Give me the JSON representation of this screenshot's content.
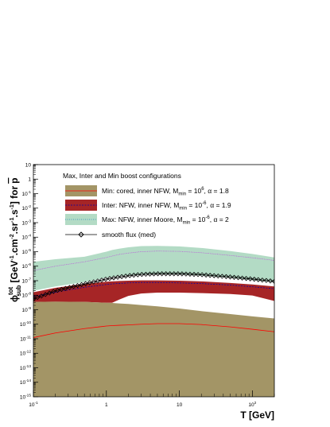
{
  "chart_data": {
    "type": "area",
    "title": "",
    "xlabel": "T [GeV]",
    "ylabel_parts": {
      "phi": "ϕ",
      "sup": "tot",
      "sub": "sub",
      "unit": "[GeV",
      "unit_exp1": "-1",
      "unit_cm": ".cm",
      "unit_exp2": "-2",
      "unit_sr": ".sr",
      "unit_exp3": "-1",
      "unit_s": ".s",
      "unit_exp4": "-1",
      "unit_end": "] for",
      "pbar": "p"
    },
    "x_scale": "log",
    "y_scale": "log",
    "xlim": [
      0.1,
      200
    ],
    "ylim": [
      1e-15,
      10
    ],
    "x_ticks": [
      {
        "value": 0.1,
        "base": "10",
        "exp": "-1"
      },
      {
        "value": 1,
        "base": "1",
        "exp": ""
      },
      {
        "value": 10,
        "base": "10",
        "exp": ""
      },
      {
        "value": 100,
        "base": "10",
        "exp": "2"
      }
    ],
    "y_ticks": [
      {
        "value": 10,
        "base": "10",
        "exp": ""
      },
      {
        "value": 1,
        "base": "1",
        "exp": ""
      },
      {
        "value": 0.1,
        "base": "10",
        "exp": "-1"
      },
      {
        "value": 0.01,
        "base": "10",
        "exp": "-2"
      },
      {
        "value": 0.001,
        "base": "10",
        "exp": "-3"
      },
      {
        "value": 0.0001,
        "base": "10",
        "exp": "-4"
      },
      {
        "value": 1e-05,
        "base": "10",
        "exp": "-5"
      },
      {
        "value": 1e-06,
        "base": "10",
        "exp": "-6"
      },
      {
        "value": 1e-07,
        "base": "10",
        "exp": "-7"
      },
      {
        "value": 1e-08,
        "base": "10",
        "exp": "-8"
      },
      {
        "value": 1e-09,
        "base": "10",
        "exp": "-9"
      },
      {
        "value": 1e-10,
        "base": "10",
        "exp": "-10"
      },
      {
        "value": 1e-11,
        "base": "10",
        "exp": "-11"
      },
      {
        "value": 1e-12,
        "base": "10",
        "exp": "-12"
      },
      {
        "value": 1e-13,
        "base": "10",
        "exp": "-13"
      },
      {
        "value": 1e-14,
        "base": "10",
        "exp": "-14"
      },
      {
        "value": 1e-15,
        "base": "10",
        "exp": "-15"
      }
    ],
    "grid": false,
    "legend_position": "top",
    "legend_title": "Max, Inter and Min boost configurations",
    "legend": [
      {
        "id": "min",
        "text": "Min: cored, inner NFW, M",
        "sub": "min",
        "mid": " = 10",
        "sup": "6",
        "tail": ", α = 1.8"
      },
      {
        "id": "inter",
        "text": "Inter: NFW, inner NFW, M",
        "sub": "min",
        "mid": " = 10",
        "sup": "-6",
        "tail": ", α = 1.9"
      },
      {
        "id": "max",
        "text": "Max: NFW, inner Moore, M",
        "sub": "min",
        "mid": " = 10",
        "sup": "-6",
        "tail": ", α = 2"
      },
      {
        "id": "smooth",
        "text": "smooth flux (med)",
        "sub": "",
        "mid": "",
        "sup": "",
        "tail": ""
      }
    ],
    "colors": {
      "min_fill": "#a39566",
      "inter_fill": "#a62526",
      "max_fill": "#b3dbc5",
      "min_line": "#ff0000",
      "inter_line": "#0000aa",
      "max_line": "#bb44dd",
      "smooth": "#000000"
    },
    "x": [
      0.1,
      0.2,
      0.5,
      1,
      1.2,
      1.5,
      2,
      3,
      5,
      10,
      20,
      50,
      100,
      200
    ],
    "series": [
      {
        "name": "Min: cored, inner NFW, Mmin = 10^6, α = 1.8",
        "role": "min_band",
        "upper": [
          3.5e-09,
          3.6e-09,
          3.5e-09,
          3e-09,
          2.9e-09,
          2.7e-09,
          2.5e-09,
          2.1e-09,
          1.7e-09,
          1.2e-09,
          8e-10,
          5e-10,
          3.5e-10,
          2.5e-10
        ],
        "lower": [
          1e-15,
          1e-15,
          1e-15,
          1e-15,
          1e-15,
          1e-15,
          1e-15,
          1e-15,
          1e-15,
          1e-15,
          1e-15,
          1e-15,
          1e-15,
          1e-15
        ],
        "median": [
          1.2e-11,
          2.5e-11,
          5e-11,
          7.5e-11,
          8e-11,
          8.5e-11,
          9e-11,
          1e-10,
          1.1e-10,
          1.1e-10,
          9.5e-11,
          6.5e-11,
          4.5e-11,
          3e-11
        ]
      },
      {
        "name": "Inter: NFW, inner NFW, Mmin = 10^-6, α = 1.9",
        "role": "inter_band",
        "upper": [
          1.6e-08,
          3.2e-08,
          6e-08,
          8.5e-08,
          9e-08,
          9.5e-08,
          1e-07,
          1.05e-07,
          1.05e-07,
          1e-07,
          9e-08,
          7e-08,
          5.5e-08,
          4e-08
        ],
        "lower": [
          3.5e-09,
          3.6e-09,
          3.5e-09,
          3e-09,
          3e-09,
          5e-09,
          9e-09,
          1.3e-08,
          1.5e-08,
          1.5e-08,
          1.4e-08,
          1.2e-08,
          9.5e-09,
          4e-09
        ],
        "median": [
          8e-09,
          1.6e-08,
          3.5e-08,
          5.5e-08,
          6e-08,
          6.5e-08,
          7e-08,
          7.5e-08,
          7.5e-08,
          7e-08,
          6.3e-08,
          5e-08,
          3.8e-08,
          2.8e-08
        ]
      },
      {
        "name": "Max: NFW, inner Moore, Mmin = 10^-6, α = 2",
        "role": "max_band",
        "upper": [
          2e-06,
          3e-06,
          4.5e-06,
          1e-05,
          1.3e-05,
          1.6e-05,
          2e-05,
          2.4e-05,
          2.5e-05,
          2.3e-05,
          1.8e-05,
          1.1e-05,
          7e-06,
          4e-06
        ],
        "lower": [
          2e-08,
          4e-08,
          8e-08,
          1.6e-07,
          1.8e-07,
          2.1e-07,
          2.4e-07,
          2.7e-07,
          2.8e-07,
          2.7e-07,
          2.3e-07,
          1.6e-07,
          1.1e-07,
          8e-08
        ],
        "median": [
          5e-07,
          1e-06,
          2e-06,
          4e-06,
          5e-06,
          6.5e-06,
          8e-06,
          1e-05,
          1.1e-05,
          1.05e-05,
          8.5e-06,
          5.5e-06,
          3.8e-06,
          2.5e-06
        ]
      },
      {
        "name": "smooth flux (med)",
        "role": "smooth",
        "values": [
          5.5e-09,
          2e-08,
          6e-08,
          1.3e-07,
          1.5e-07,
          1.8e-07,
          2.2e-07,
          2.7e-07,
          3e-07,
          3e-07,
          2.6e-07,
          1.8e-07,
          1.3e-07,
          9e-08
        ]
      }
    ]
  }
}
